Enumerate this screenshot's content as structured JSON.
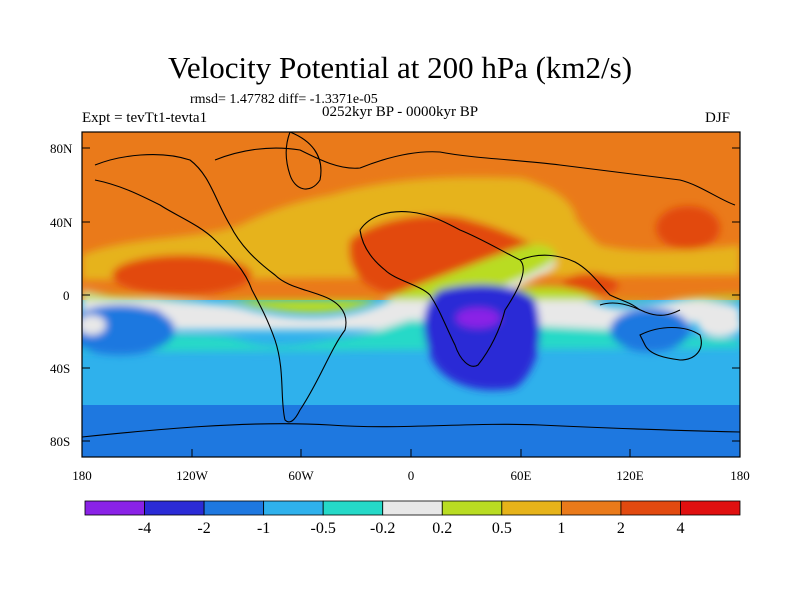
{
  "title": "Velocity Potential at 200 hPa (km2/s)",
  "stats": "rmsd= 1.47782 diff= -1.3371e-05",
  "experiment": "Expt = tevTt1-tevta1",
  "period": "0252kyr BP - 0000kyr BP",
  "season": "DJF",
  "lat_labels": [
    "80N",
    "40N",
    "0",
    "40S",
    "80S"
  ],
  "lon_labels": [
    "180",
    "120W",
    "60W",
    "0",
    "60E",
    "120E",
    "180"
  ],
  "colorbar": {
    "colors": [
      "#8a22e6",
      "#2b2bd6",
      "#1e78e0",
      "#2fb1ec",
      "#25d9c8",
      "#e8e8e8",
      "#b9dc22",
      "#e6b31a",
      "#ea7a1a",
      "#e24a10",
      "#e01010"
    ],
    "labels": [
      "-4",
      "-2",
      "-1",
      "-0.5",
      "-0.2",
      "0.2",
      "0.5",
      "1",
      "2",
      "4"
    ]
  }
}
